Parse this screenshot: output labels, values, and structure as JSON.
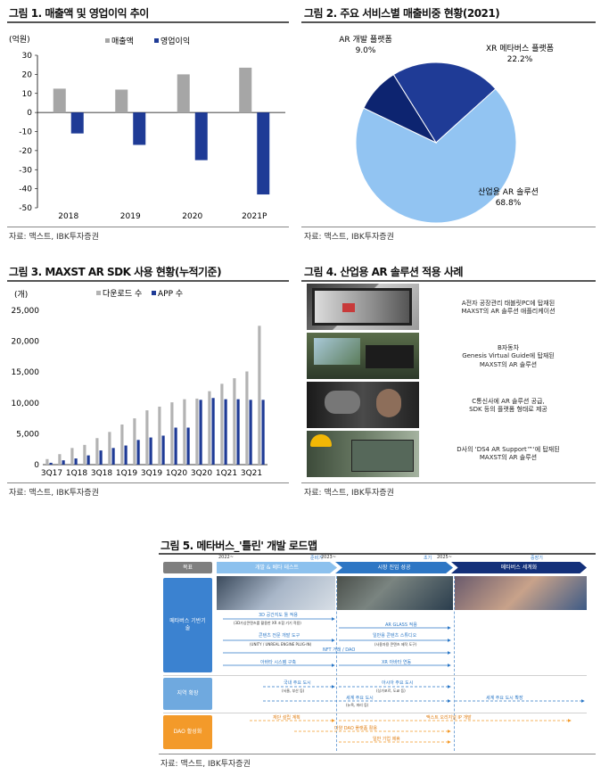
{
  "fig1": {
    "title": "그림 1. 매출액 및 영업이익 추이",
    "unit": "(억원)",
    "source": "자료: 맥스트, IBK투자증권",
    "colors": {
      "revenue": "#a6a6a6",
      "op": "#1f3b96"
    },
    "chart_data": {
      "type": "bar",
      "categories": [
        "2018",
        "2019",
        "2020",
        "2021P"
      ],
      "series": [
        {
          "name": "매출액",
          "values": [
            12.5,
            12,
            20,
            23.5
          ]
        },
        {
          "name": "영업이익",
          "values": [
            -11,
            -17,
            -25,
            -43
          ]
        }
      ],
      "ylim": [
        -50,
        30
      ],
      "yticks": [
        "30",
        "20",
        "10",
        "0",
        "-10",
        "-20",
        "-30",
        "-40",
        "-50"
      ],
      "legend": "top-center"
    }
  },
  "fig2": {
    "title": "그림 2. 주요 서비스별 매출비중 현황(2021)",
    "source": "자료: 맥스트, IBK투자증권",
    "chart_data": {
      "type": "pie",
      "slices": [
        {
          "label": "XR 메타버스 플랫폼",
          "pct": "22.2%",
          "value": 22.2,
          "color": "#1f3b96"
        },
        {
          "label": "산업용 AR 솔루션",
          "pct": "68.8%",
          "value": 68.8,
          "color": "#92c4f2"
        },
        {
          "label": "AR 개발 플랫폼",
          "pct": "9.0%",
          "value": 9.0,
          "color": "#0d2470"
        }
      ]
    }
  },
  "fig3": {
    "title": "그림 3. MAXST AR SDK 사용 현황(누적기준)",
    "unit": "(개)",
    "source": "자료: 맥스트, IBK투자증권",
    "colors": {
      "downloads": "#b3b3b3",
      "apps": "#1f3b96"
    },
    "chart_data": {
      "type": "bar",
      "categories": [
        "3Q17",
        "4Q17",
        "1Q18",
        "2Q18",
        "3Q18",
        "4Q18",
        "1Q19",
        "2Q19",
        "3Q19",
        "4Q19",
        "1Q20",
        "2Q20",
        "3Q20",
        "4Q20",
        "1Q21",
        "2Q21",
        "3Q21",
        "4Q21"
      ],
      "xticks": [
        "3Q17",
        "1Q18",
        "3Q18",
        "1Q19",
        "3Q19",
        "1Q20",
        "3Q20",
        "1Q21",
        "3Q21"
      ],
      "series": [
        {
          "name": "다운로드 수",
          "values": [
            900,
            1700,
            2700,
            3200,
            4300,
            5300,
            6500,
            7500,
            8800,
            9400,
            10100,
            10600,
            10700,
            11900,
            13100,
            14000,
            15100,
            22500
          ]
        },
        {
          "name": "APP 수",
          "values": [
            300,
            700,
            1000,
            1500,
            2300,
            2700,
            3100,
            4000,
            4400,
            4700,
            6000,
            6000,
            10500,
            10800,
            10600,
            10600,
            10500,
            10500
          ]
        }
      ],
      "ylim": [
        0,
        25000
      ],
      "yticks": [
        "25,000",
        "20,000",
        "15,000",
        "10,000",
        "5,000",
        "0"
      ],
      "legend": "top-left"
    }
  },
  "fig4": {
    "title": "그림 4. 산업용 AR 솔루션 적용 사례",
    "source": "자료: 맥스트, IBK투자증권",
    "cases": [
      {
        "line1": "A전자 공장관리 태블릿PC에 탑재된",
        "line2": "MAXST의 AR 솔루션 애플리케이션"
      },
      {
        "line1": "B자동차",
        "line2": "Genesis Virtual Guide에 탑재된",
        "line3": "MAXST의 AR 솔루션"
      },
      {
        "line1": "C통신사에 AR 솔루션 공급,",
        "line2": "SDK 등의 플랫폼 형태로 제공"
      },
      {
        "line1": "D사의 'DS4 AR Support™'에 탑재된",
        "line2": "MAXST의 AR 솔루션"
      }
    ]
  },
  "fig5": {
    "title": "그림 5. 메타버스_'틀린' 개발 로드맵",
    "source": "자료: 맥스트, IBK투자증권",
    "header_label": "목표",
    "phases": [
      {
        "year": "2022~",
        "term": "준비기",
        "name": "개발 & 베타 테스트"
      },
      {
        "year": "2023~",
        "term": "초기",
        "name": "시장 진입 성공"
      },
      {
        "year": "2025~",
        "term": "중장기",
        "name": "메타버스 세계화"
      }
    ],
    "rows": [
      {
        "label": "메타버스 기반기술",
        "items": [
          "3D 공간지도 툴 적용",
          "(3D가상콘텐츠를 활용한 XR 조합 기기 적용)",
          "AR GLASS 적용",
          "콘텐츠 전문 개발 도구",
          "(UNITY / UNREAL ENGINE PLUG-IN)",
          "일반용 콘텐츠 스튜디오",
          "(사용자용 콘텐츠 제작 도구)",
          "NFT 거래 / DAO",
          "아바타 시스템 구축",
          "XR 아바타 연동"
        ]
      },
      {
        "label": "지역 확장",
        "items": [
          "국내 주요 도시",
          "(서울, 부산 등)",
          "아시아 주요 도시",
          "(싱가포르, 도쿄 등)",
          "세계 주요 도시",
          "(뉴욕, 파리 등)",
          "세계 주요 도시 확장"
        ]
      },
      {
        "label": "DAO 활성화",
        "items": [
          "재단 설립 계획",
          "맥스트 오리지널 IP 개발",
          "다양 DAO 플랫폼 활용",
          "일반 기업 제휴"
        ]
      }
    ]
  }
}
